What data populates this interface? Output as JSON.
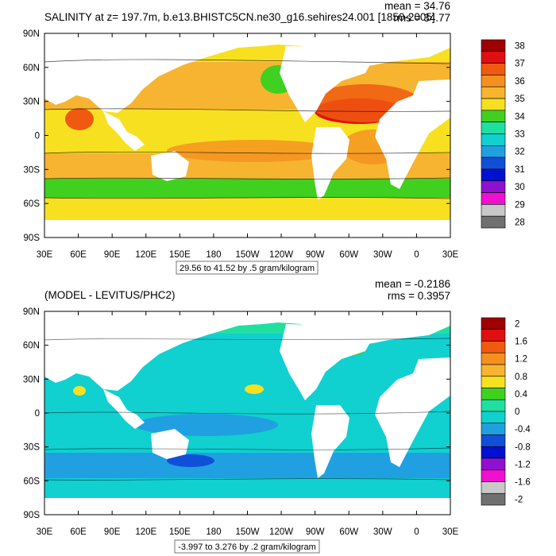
{
  "chart_data": [
    {
      "type": "heatmap",
      "title": "SALINITY at z= 197.7m, b.e13.BHISTC5CN.ne30_g16.sehires24.001 [1850-2005]",
      "stat_mean": "mean = 34.76",
      "stat_rms": "rms = 34.77",
      "range_note": "29.56 to 41.52 by .5 gram/kilogram",
      "x_ticks": [
        "30E",
        "60E",
        "90E",
        "120E",
        "150E",
        "180",
        "150W",
        "120W",
        "90W",
        "60W",
        "30W",
        "0",
        "30E"
      ],
      "y_ticks": [
        "90N",
        "60N",
        "30N",
        "0",
        "30S",
        "60S",
        "90S"
      ],
      "colorbar": {
        "labels": [
          "38",
          "37",
          "36",
          "35",
          "34",
          "33",
          "32",
          "31",
          "30",
          "29",
          "28"
        ],
        "colors": [
          "#a00000",
          "#e01010",
          "#f05a10",
          "#f49020",
          "#f7b430",
          "#f7e020",
          "#40d020",
          "#20e0a0",
          "#10d0d0",
          "#20a0e0",
          "#1050d8",
          "#0010d0",
          "#9010d0",
          "#f010d0",
          "#c8c8c8",
          "#707070"
        ]
      },
      "field_summary": {
        "subtropical_gyres": 35.5,
        "north_atlantic_max": 37.0,
        "southern_ocean_band": 34.0,
        "arctic_and_subpolar": 34.0
      }
    },
    {
      "type": "heatmap",
      "title": "(MODEL - LEVITUS/PHC2)",
      "stat_mean": "mean = -0.2186",
      "stat_rms": "rms = 0.3957",
      "range_note": "-3.997 to 3.276 by .2 gram/kilogram",
      "x_ticks": [
        "30E",
        "60E",
        "90E",
        "120E",
        "150E",
        "180",
        "150W",
        "120W",
        "90W",
        "60W",
        "30W",
        "0",
        "30E"
      ],
      "y_ticks": [
        "90N",
        "60N",
        "30N",
        "0",
        "30S",
        "60S",
        "90S"
      ],
      "colorbar": {
        "labels": [
          "2",
          "1.6",
          "1.2",
          "0.8",
          "0.4",
          "0",
          "-0.4",
          "-0.8",
          "-1.2",
          "-1.6",
          "-2"
        ],
        "colors": [
          "#a00000",
          "#e01010",
          "#f05a10",
          "#f49020",
          "#f7b430",
          "#f7e020",
          "#40d020",
          "#20e0a0",
          "#10d0d0",
          "#20a0e0",
          "#1050d8",
          "#0010d0",
          "#9010d0",
          "#f010d0",
          "#c8c8c8",
          "#707070"
        ]
      },
      "field_summary": {
        "open_ocean": -0.2,
        "southern_ocean_band": -0.8,
        "western_boundary_positive": 0.6
      }
    }
  ]
}
